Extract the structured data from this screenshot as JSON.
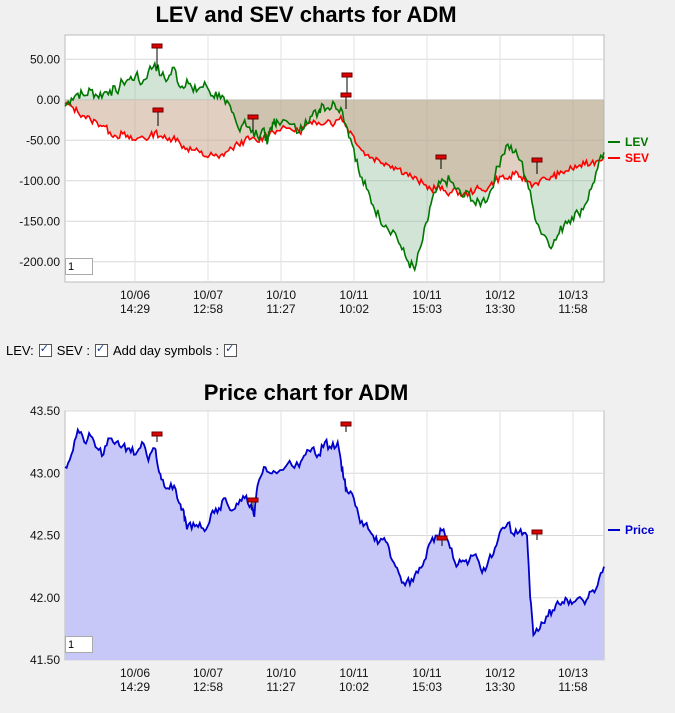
{
  "controls": {
    "lev_label": "LEV:",
    "sev_label": "SEV :",
    "day_symbols_label": "Add day symbols :",
    "lev_checked": true,
    "sev_checked": true,
    "day_symbols_checked": true
  },
  "zoom": {
    "chart1": "1",
    "chart2": "1"
  },
  "colors": {
    "lev": "#007700",
    "sev": "#ff0000",
    "price": "#0000cc",
    "price_fill": "#c8c8f8"
  },
  "chart_data": [
    {
      "type": "line",
      "title": "LEV and SEV charts for ADM",
      "x_tick_labels": [
        [
          "10/06",
          "14:29"
        ],
        [
          "10/07",
          "12:58"
        ],
        [
          "10/10",
          "11:27"
        ],
        [
          "10/11",
          "10:02"
        ],
        [
          "10/11",
          "15:03"
        ],
        [
          "10/12",
          "13:30"
        ],
        [
          "10/13",
          "11:58"
        ]
      ],
      "y_ticks": [
        50,
        0,
        -50,
        -100,
        -150,
        -200
      ],
      "y_tick_labels": [
        "50.00",
        "0.00",
        "-50.00",
        "-100.00",
        "-150.00",
        "-200.00"
      ],
      "ylim": [
        -225,
        80
      ],
      "grid": true,
      "legend_position": "right",
      "series": [
        {
          "name": "LEV",
          "color": "#007700",
          "points": [
            [
              0,
              -8
            ],
            [
              0.02,
              2
            ],
            [
              0.04,
              8
            ],
            [
              0.06,
              5
            ],
            [
              0.08,
              12
            ],
            [
              0.1,
              5
            ],
            [
              0.12,
              8
            ],
            [
              0.14,
              12
            ],
            [
              0.16,
              10
            ],
            [
              0.18,
              22
            ],
            [
              0.2,
              25
            ],
            [
              0.22,
              30
            ],
            [
              0.24,
              20
            ],
            [
              0.26,
              35
            ],
            [
              0.28,
              45
            ],
            [
              0.3,
              30
            ],
            [
              0.32,
              25
            ],
            [
              0.34,
              40
            ],
            [
              0.36,
              15
            ],
            [
              0.38,
              25
            ],
            [
              0.4,
              10
            ],
            [
              0.42,
              15
            ],
            [
              0.44,
              18
            ],
            [
              0.46,
              5
            ],
            [
              0.48,
              8
            ],
            [
              0.5,
              -5
            ],
            [
              0.52,
              -15
            ],
            [
              0.54,
              -35
            ],
            [
              0.56,
              -25
            ],
            [
              0.58,
              -40
            ],
            [
              0.6,
              -45
            ],
            [
              0.62,
              -35
            ],
            [
              0.63,
              -55
            ],
            [
              0.64,
              -35
            ],
            [
              0.65,
              -30
            ],
            [
              0.66,
              -25
            ],
            [
              0.7,
              -30
            ],
            [
              0.73,
              -40
            ],
            [
              0.75,
              -25
            ],
            [
              0.77,
              -20
            ],
            [
              0.79,
              -15
            ],
            [
              0.8,
              -5
            ],
            [
              0.82,
              -10
            ],
            [
              0.84,
              -5
            ],
            [
              0.86,
              -10
            ],
            [
              0.88,
              -35
            ],
            [
              0.9,
              -60
            ],
            [
              0.92,
              -95
            ],
            [
              0.94,
              -110
            ],
            [
              0.96,
              -130
            ],
            [
              0.98,
              -145
            ],
            [
              1.0,
              -155
            ],
            [
              1.03,
              -165
            ],
            [
              1.05,
              -185
            ],
            [
              1.07,
              -200
            ],
            [
              1.09,
              -210
            ],
            [
              1.11,
              -180
            ],
            [
              1.13,
              -150
            ],
            [
              1.14,
              -130
            ],
            [
              1.16,
              -110
            ],
            [
              1.18,
              -100
            ],
            [
              1.2,
              -100
            ],
            [
              1.22,
              -110
            ],
            [
              1.24,
              -120
            ],
            [
              1.26,
              -115
            ],
            [
              1.28,
              -130
            ],
            [
              1.3,
              -125
            ],
            [
              1.32,
              -120
            ],
            [
              1.34,
              -95
            ],
            [
              1.36,
              -70
            ],
            [
              1.38,
              -55
            ],
            [
              1.4,
              -65
            ],
            [
              1.42,
              -75
            ],
            [
              1.44,
              -100
            ],
            [
              1.46,
              -135
            ],
            [
              1.48,
              -160
            ],
            [
              1.5,
              -170
            ],
            [
              1.52,
              -180
            ],
            [
              1.54,
              -165
            ],
            [
              1.56,
              -150
            ],
            [
              1.58,
              -145
            ],
            [
              1.6,
              -140
            ],
            [
              1.62,
              -130
            ],
            [
              1.64,
              -110
            ],
            [
              1.66,
              -85
            ],
            [
              1.68,
              -65
            ]
          ]
        },
        {
          "name": "SEV",
          "color": "#ff0000",
          "points": [
            [
              0,
              -5
            ],
            [
              0.02,
              -8
            ],
            [
              0.04,
              -15
            ],
            [
              0.06,
              -20
            ],
            [
              0.08,
              -25
            ],
            [
              0.1,
              -28
            ],
            [
              0.12,
              -32
            ],
            [
              0.14,
              -40
            ],
            [
              0.16,
              -45
            ],
            [
              0.18,
              -42
            ],
            [
              0.2,
              -48
            ],
            [
              0.22,
              -50
            ],
            [
              0.24,
              -45
            ],
            [
              0.26,
              -48
            ],
            [
              0.28,
              -40
            ],
            [
              0.3,
              -45
            ],
            [
              0.32,
              -50
            ],
            [
              0.34,
              -45
            ],
            [
              0.36,
              -55
            ],
            [
              0.38,
              -60
            ],
            [
              0.4,
              -62
            ],
            [
              0.42,
              -65
            ],
            [
              0.44,
              -70
            ],
            [
              0.46,
              -68
            ],
            [
              0.48,
              -72
            ],
            [
              0.5,
              -65
            ],
            [
              0.52,
              -60
            ],
            [
              0.54,
              -55
            ],
            [
              0.56,
              -50
            ],
            [
              0.58,
              -48
            ],
            [
              0.6,
              -52
            ],
            [
              0.62,
              -45
            ],
            [
              0.64,
              -40
            ],
            [
              0.66,
              -38
            ],
            [
              0.7,
              -35
            ],
            [
              0.73,
              -40
            ],
            [
              0.75,
              -32
            ],
            [
              0.77,
              -30
            ],
            [
              0.79,
              -28
            ],
            [
              0.82,
              -25
            ],
            [
              0.84,
              -30
            ],
            [
              0.86,
              -20
            ],
            [
              0.88,
              -35
            ],
            [
              0.9,
              -45
            ],
            [
              0.92,
              -60
            ],
            [
              0.94,
              -68
            ],
            [
              0.96,
              -72
            ],
            [
              0.98,
              -75
            ],
            [
              1.0,
              -78
            ],
            [
              1.02,
              -82
            ],
            [
              1.04,
              -85
            ],
            [
              1.06,
              -90
            ],
            [
              1.08,
              -95
            ],
            [
              1.1,
              -100
            ],
            [
              1.12,
              -105
            ],
            [
              1.14,
              -110
            ],
            [
              1.16,
              -108
            ],
            [
              1.18,
              -112
            ],
            [
              1.2,
              -115
            ],
            [
              1.22,
              -112
            ],
            [
              1.24,
              -118
            ],
            [
              1.26,
              -115
            ],
            [
              1.28,
              -110
            ],
            [
              1.3,
              -112
            ],
            [
              1.32,
              -108
            ],
            [
              1.34,
              -100
            ],
            [
              1.36,
              -95
            ],
            [
              1.38,
              -98
            ],
            [
              1.4,
              -92
            ],
            [
              1.42,
              -95
            ],
            [
              1.44,
              -100
            ],
            [
              1.46,
              -105
            ],
            [
              1.48,
              -100
            ],
            [
              1.5,
              -98
            ],
            [
              1.52,
              -95
            ],
            [
              1.54,
              -92
            ],
            [
              1.56,
              -88
            ],
            [
              1.58,
              -85
            ],
            [
              1.6,
              -82
            ],
            [
              1.62,
              -80
            ],
            [
              1.64,
              -78
            ],
            [
              1.66,
              -75
            ],
            [
              1.68,
              -70
            ]
          ]
        }
      ]
    },
    {
      "type": "area",
      "title": "Price chart for ADM",
      "x_tick_labels": [
        [
          "10/06",
          "14:29"
        ],
        [
          "10/07",
          "12:58"
        ],
        [
          "10/10",
          "11:27"
        ],
        [
          "10/11",
          "10:02"
        ],
        [
          "10/11",
          "15:03"
        ],
        [
          "10/12",
          "13:30"
        ],
        [
          "10/13",
          "11:58"
        ]
      ],
      "y_ticks": [
        43.5,
        43.0,
        42.5,
        42.0,
        41.5
      ],
      "y_tick_labels": [
        "43.50",
        "43.00",
        "42.50",
        "42.00",
        "41.50"
      ],
      "ylim": [
        41.5,
        43.5
      ],
      "grid": true,
      "legend_position": "right",
      "series": [
        {
          "name": "Price",
          "color": "#0000cc",
          "points": [
            [
              0,
              43.05
            ],
            [
              0.02,
              43.15
            ],
            [
              0.04,
              43.35
            ],
            [
              0.06,
              43.25
            ],
            [
              0.08,
              43.3
            ],
            [
              0.1,
              43.2
            ],
            [
              0.12,
              43.15
            ],
            [
              0.14,
              43.28
            ],
            [
              0.16,
              43.25
            ],
            [
              0.18,
              43.22
            ],
            [
              0.2,
              43.2
            ],
            [
              0.22,
              43.15
            ],
            [
              0.24,
              43.25
            ],
            [
              0.26,
              43.1
            ],
            [
              0.28,
              43.2
            ],
            [
              0.29,
              43.05
            ],
            [
              0.3,
              42.95
            ],
            [
              0.32,
              42.88
            ],
            [
              0.34,
              42.9
            ],
            [
              0.36,
              42.75
            ],
            [
              0.37,
              42.7
            ],
            [
              0.38,
              42.55
            ],
            [
              0.4,
              42.6
            ],
            [
              0.42,
              42.6
            ],
            [
              0.44,
              42.55
            ],
            [
              0.46,
              42.7
            ],
            [
              0.48,
              42.72
            ],
            [
              0.5,
              42.8
            ],
            [
              0.52,
              42.7
            ],
            [
              0.54,
              42.75
            ],
            [
              0.56,
              42.8
            ],
            [
              0.58,
              42.75
            ],
            [
              0.59,
              42.65
            ],
            [
              0.6,
              42.9
            ],
            [
              0.62,
              43.05
            ],
            [
              0.64,
              43.0
            ],
            [
              0.66,
              43.0
            ],
            [
              0.7,
              43.1
            ],
            [
              0.73,
              43.05
            ],
            [
              0.75,
              43.15
            ],
            [
              0.77,
              43.2
            ],
            [
              0.79,
              43.15
            ],
            [
              0.81,
              43.25
            ],
            [
              0.83,
              43.2
            ],
            [
              0.85,
              43.25
            ],
            [
              0.86,
              43.1
            ],
            [
              0.87,
              42.95
            ],
            [
              0.88,
              42.85
            ],
            [
              0.9,
              42.8
            ],
            [
              0.92,
              42.6
            ],
            [
              0.94,
              42.6
            ],
            [
              0.96,
              42.5
            ],
            [
              0.98,
              42.45
            ],
            [
              1.0,
              42.45
            ],
            [
              1.02,
              42.3
            ],
            [
              1.04,
              42.2
            ],
            [
              1.06,
              42.1
            ],
            [
              1.08,
              42.15
            ],
            [
              1.1,
              42.2
            ],
            [
              1.12,
              42.3
            ],
            [
              1.14,
              42.45
            ],
            [
              1.16,
              42.5
            ],
            [
              1.18,
              42.55
            ],
            [
              1.2,
              42.4
            ],
            [
              1.22,
              42.25
            ],
            [
              1.24,
              42.3
            ],
            [
              1.26,
              42.3
            ],
            [
              1.28,
              42.35
            ],
            [
              1.3,
              42.2
            ],
            [
              1.32,
              42.3
            ],
            [
              1.34,
              42.4
            ],
            [
              1.36,
              42.55
            ],
            [
              1.38,
              42.6
            ],
            [
              1.4,
              42.5
            ],
            [
              1.42,
              42.55
            ],
            [
              1.44,
              42.5
            ],
            [
              1.45,
              42.0
            ],
            [
              1.46,
              41.7
            ],
            [
              1.48,
              41.75
            ],
            [
              1.5,
              41.85
            ],
            [
              1.52,
              41.9
            ],
            [
              1.54,
              41.95
            ],
            [
              1.56,
              42.0
            ],
            [
              1.58,
              41.95
            ],
            [
              1.6,
              42.0
            ],
            [
              1.62,
              41.95
            ],
            [
              1.64,
              42.05
            ],
            [
              1.66,
              42.1
            ],
            [
              1.68,
              42.25
            ]
          ]
        }
      ]
    }
  ]
}
